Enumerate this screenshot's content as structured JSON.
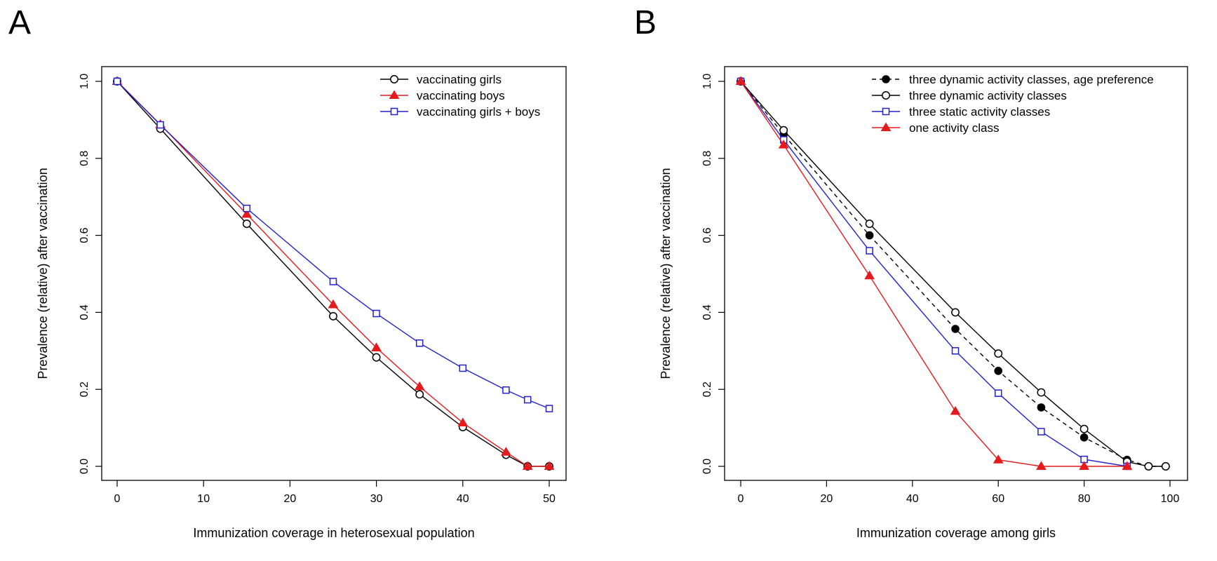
{
  "chart_data": [
    {
      "panel": "A",
      "type": "line",
      "xlabel": "Immunization coverage in heterosexual population",
      "ylabel": "Prevalence (relative) after vaccination",
      "xlim": [
        0,
        50
      ],
      "ylim": [
        0,
        1
      ],
      "xticks": [
        "0",
        "10",
        "20",
        "30",
        "40",
        "50"
      ],
      "yticks": [
        "0.0",
        "0.2",
        "0.4",
        "0.6",
        "0.8",
        "1.0"
      ],
      "grid": false,
      "legend_position": "top-right",
      "series": [
        {
          "name": "vaccinating girls",
          "color": "#000000",
          "marker": "open-circle",
          "x": [
            0,
            5,
            15,
            25,
            30,
            35,
            40,
            45,
            47.5,
            50
          ],
          "y": [
            1.0,
            0.877,
            0.63,
            0.39,
            0.283,
            0.187,
            0.102,
            0.03,
            0.0,
            0.0
          ]
        },
        {
          "name": "vaccinating boys",
          "color": "#e41a1c",
          "marker": "filled-triangle",
          "x": [
            0,
            5,
            15,
            25,
            30,
            35,
            40,
            45,
            47.5,
            50
          ],
          "y": [
            1.0,
            0.888,
            0.655,
            0.42,
            0.308,
            0.207,
            0.113,
            0.037,
            0.0,
            0.0
          ]
        },
        {
          "name": "vaccinating girls + boys",
          "color": "#2222cc",
          "marker": "open-square",
          "x": [
            0,
            5,
            15,
            25,
            30,
            35,
            40,
            45,
            47.5,
            50
          ],
          "y": [
            1.0,
            0.887,
            0.67,
            0.48,
            0.397,
            0.32,
            0.255,
            0.198,
            0.173,
            0.15
          ]
        }
      ]
    },
    {
      "panel": "B",
      "type": "line",
      "xlabel": "Immunization coverage among girls",
      "ylabel": "Prevalence (relative) after vaccination",
      "xlim": [
        0,
        100
      ],
      "ylim": [
        0,
        1
      ],
      "xticks": [
        "0",
        "20",
        "40",
        "60",
        "80",
        "100"
      ],
      "yticks": [
        "0.0",
        "0.2",
        "0.4",
        "0.6",
        "0.8",
        "1.0"
      ],
      "grid": false,
      "legend_position": "top-right",
      "series": [
        {
          "name": "three dynamic activity classes, age preference",
          "color": "#000000",
          "marker": "filled-circle",
          "dashed": true,
          "x": [
            0,
            10,
            30,
            50,
            60,
            70,
            80,
            90,
            95,
            99
          ],
          "y": [
            1.0,
            0.862,
            0.6,
            0.357,
            0.248,
            0.153,
            0.075,
            0.017,
            0.0,
            0.0
          ]
        },
        {
          "name": "three dynamic activity classes",
          "color": "#000000",
          "marker": "open-circle",
          "x": [
            0,
            10,
            30,
            50,
            60,
            70,
            80,
            90,
            95,
            99
          ],
          "y": [
            1.0,
            0.873,
            0.63,
            0.4,
            0.293,
            0.192,
            0.097,
            0.012,
            0.0,
            0.0
          ]
        },
        {
          "name": "three static activity classes",
          "color": "#2222cc",
          "marker": "open-square",
          "x": [
            0,
            10,
            30,
            50,
            60,
            70,
            80,
            90
          ],
          "y": [
            1.0,
            0.848,
            0.56,
            0.3,
            0.19,
            0.09,
            0.018,
            0.0
          ]
        },
        {
          "name": "one activity class",
          "color": "#e41a1c",
          "marker": "filled-triangle",
          "x": [
            0,
            10,
            30,
            50,
            60,
            70,
            80,
            90
          ],
          "y": [
            1.0,
            0.835,
            0.495,
            0.143,
            0.017,
            0.0,
            0.0,
            0.0
          ]
        }
      ]
    }
  ]
}
